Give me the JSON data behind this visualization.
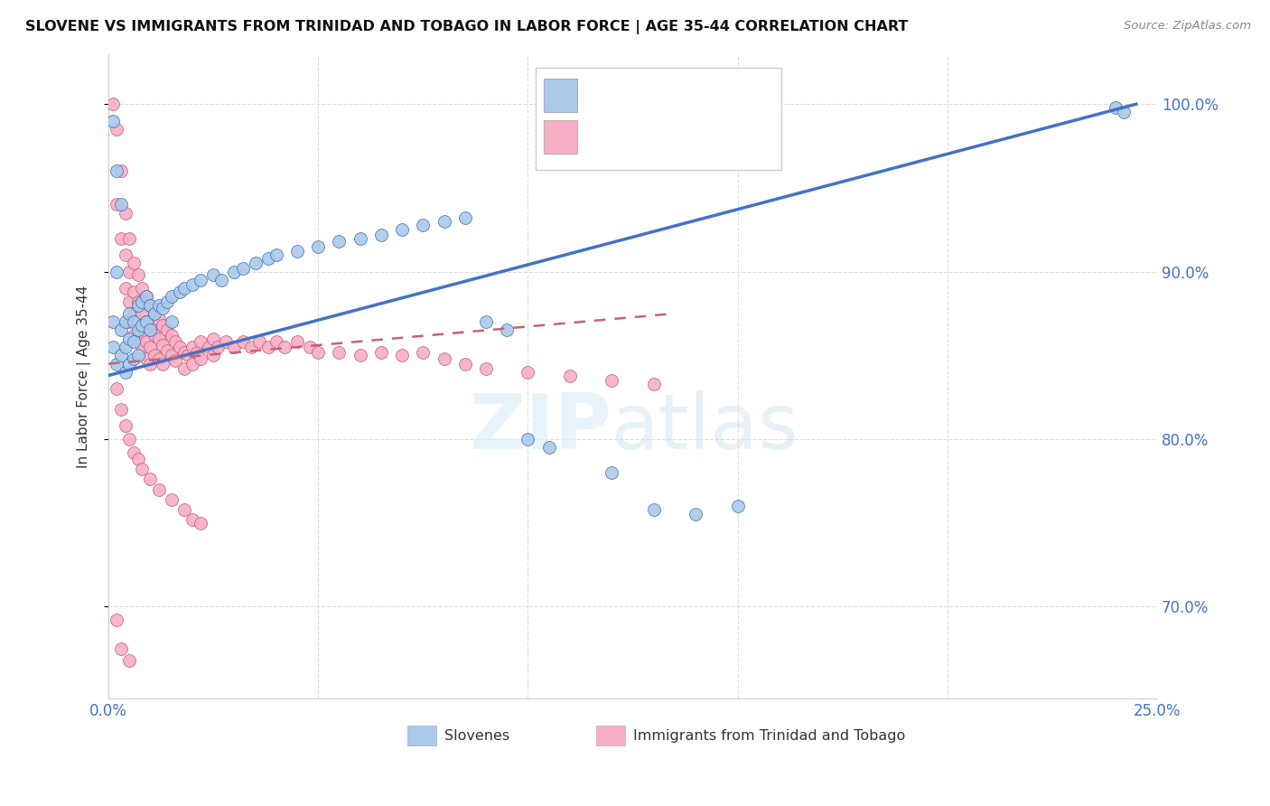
{
  "title": "SLOVENE VS IMMIGRANTS FROM TRINIDAD AND TOBAGO IN LABOR FORCE | AGE 35-44 CORRELATION CHART",
  "source": "Source: ZipAtlas.com",
  "ylabel": "In Labor Force | Age 35-44",
  "legend_label_blue": "Slovenes",
  "legend_label_pink": "Immigrants from Trinidad and Tobago",
  "blue_color": "#aac9e8",
  "pink_color": "#f5afc5",
  "trend_blue_color": "#4472c4",
  "trend_pink_color": "#c8607a",
  "xmin": 0.0,
  "xmax": 0.25,
  "ymin": 0.645,
  "ymax": 1.03,
  "ytick_vals": [
    0.7,
    0.8,
    0.9,
    1.0
  ],
  "blue_trend_x": [
    0.0,
    0.245
  ],
  "blue_trend_y": [
    0.838,
    1.0
  ],
  "pink_trend_x": [
    0.0,
    0.135
  ],
  "pink_trend_y": [
    0.845,
    0.875
  ],
  "blue_scatter": [
    [
      0.001,
      0.99
    ],
    [
      0.002,
      0.96
    ],
    [
      0.003,
      0.94
    ],
    [
      0.001,
      0.87
    ],
    [
      0.002,
      0.9
    ],
    [
      0.001,
      0.855
    ],
    [
      0.002,
      0.845
    ],
    [
      0.003,
      0.865
    ],
    [
      0.003,
      0.85
    ],
    [
      0.004,
      0.87
    ],
    [
      0.004,
      0.855
    ],
    [
      0.004,
      0.84
    ],
    [
      0.005,
      0.875
    ],
    [
      0.005,
      0.86
    ],
    [
      0.005,
      0.845
    ],
    [
      0.006,
      0.87
    ],
    [
      0.006,
      0.858
    ],
    [
      0.006,
      0.848
    ],
    [
      0.007,
      0.88
    ],
    [
      0.007,
      0.865
    ],
    [
      0.007,
      0.85
    ],
    [
      0.008,
      0.882
    ],
    [
      0.008,
      0.868
    ],
    [
      0.009,
      0.885
    ],
    [
      0.009,
      0.87
    ],
    [
      0.01,
      0.88
    ],
    [
      0.01,
      0.865
    ],
    [
      0.011,
      0.875
    ],
    [
      0.012,
      0.88
    ],
    [
      0.013,
      0.878
    ],
    [
      0.014,
      0.882
    ],
    [
      0.015,
      0.885
    ],
    [
      0.015,
      0.87
    ],
    [
      0.017,
      0.888
    ],
    [
      0.018,
      0.89
    ],
    [
      0.02,
      0.892
    ],
    [
      0.022,
      0.895
    ],
    [
      0.025,
      0.898
    ],
    [
      0.027,
      0.895
    ],
    [
      0.03,
      0.9
    ],
    [
      0.032,
      0.902
    ],
    [
      0.035,
      0.905
    ],
    [
      0.038,
      0.908
    ],
    [
      0.04,
      0.91
    ],
    [
      0.045,
      0.912
    ],
    [
      0.05,
      0.915
    ],
    [
      0.055,
      0.918
    ],
    [
      0.06,
      0.92
    ],
    [
      0.065,
      0.922
    ],
    [
      0.07,
      0.925
    ],
    [
      0.075,
      0.928
    ],
    [
      0.08,
      0.93
    ],
    [
      0.085,
      0.932
    ],
    [
      0.09,
      0.87
    ],
    [
      0.095,
      0.865
    ],
    [
      0.1,
      0.8
    ],
    [
      0.105,
      0.795
    ],
    [
      0.12,
      0.78
    ],
    [
      0.13,
      0.758
    ],
    [
      0.14,
      0.755
    ],
    [
      0.15,
      0.76
    ],
    [
      0.24,
      0.998
    ],
    [
      0.242,
      0.995
    ]
  ],
  "pink_scatter": [
    [
      0.001,
      1.0
    ],
    [
      0.002,
      0.985
    ],
    [
      0.002,
      0.94
    ],
    [
      0.003,
      0.96
    ],
    [
      0.003,
      0.92
    ],
    [
      0.004,
      0.935
    ],
    [
      0.004,
      0.91
    ],
    [
      0.004,
      0.89
    ],
    [
      0.005,
      0.92
    ],
    [
      0.005,
      0.9
    ],
    [
      0.005,
      0.882
    ],
    [
      0.005,
      0.87
    ],
    [
      0.006,
      0.905
    ],
    [
      0.006,
      0.888
    ],
    [
      0.006,
      0.875
    ],
    [
      0.006,
      0.862
    ],
    [
      0.007,
      0.898
    ],
    [
      0.007,
      0.882
    ],
    [
      0.007,
      0.87
    ],
    [
      0.007,
      0.858
    ],
    [
      0.008,
      0.89
    ],
    [
      0.008,
      0.875
    ],
    [
      0.008,
      0.864
    ],
    [
      0.008,
      0.855
    ],
    [
      0.009,
      0.885
    ],
    [
      0.009,
      0.87
    ],
    [
      0.009,
      0.858
    ],
    [
      0.009,
      0.848
    ],
    [
      0.01,
      0.88
    ],
    [
      0.01,
      0.867
    ],
    [
      0.01,
      0.855
    ],
    [
      0.01,
      0.845
    ],
    [
      0.011,
      0.875
    ],
    [
      0.011,
      0.862
    ],
    [
      0.011,
      0.85
    ],
    [
      0.012,
      0.872
    ],
    [
      0.012,
      0.86
    ],
    [
      0.012,
      0.848
    ],
    [
      0.013,
      0.868
    ],
    [
      0.013,
      0.856
    ],
    [
      0.013,
      0.845
    ],
    [
      0.014,
      0.865
    ],
    [
      0.014,
      0.853
    ],
    [
      0.015,
      0.862
    ],
    [
      0.015,
      0.85
    ],
    [
      0.016,
      0.858
    ],
    [
      0.016,
      0.847
    ],
    [
      0.017,
      0.855
    ],
    [
      0.018,
      0.852
    ],
    [
      0.018,
      0.842
    ],
    [
      0.019,
      0.85
    ],
    [
      0.02,
      0.855
    ],
    [
      0.02,
      0.845
    ],
    [
      0.021,
      0.852
    ],
    [
      0.022,
      0.858
    ],
    [
      0.022,
      0.848
    ],
    [
      0.024,
      0.855
    ],
    [
      0.025,
      0.86
    ],
    [
      0.025,
      0.85
    ],
    [
      0.026,
      0.855
    ],
    [
      0.028,
      0.858
    ],
    [
      0.03,
      0.855
    ],
    [
      0.032,
      0.858
    ],
    [
      0.034,
      0.855
    ],
    [
      0.036,
      0.858
    ],
    [
      0.038,
      0.855
    ],
    [
      0.04,
      0.858
    ],
    [
      0.042,
      0.855
    ],
    [
      0.045,
      0.858
    ],
    [
      0.048,
      0.855
    ],
    [
      0.05,
      0.852
    ],
    [
      0.055,
      0.852
    ],
    [
      0.06,
      0.85
    ],
    [
      0.065,
      0.852
    ],
    [
      0.07,
      0.85
    ],
    [
      0.075,
      0.852
    ],
    [
      0.08,
      0.848
    ],
    [
      0.085,
      0.845
    ],
    [
      0.09,
      0.842
    ],
    [
      0.1,
      0.84
    ],
    [
      0.11,
      0.838
    ],
    [
      0.12,
      0.835
    ],
    [
      0.13,
      0.833
    ],
    [
      0.002,
      0.83
    ],
    [
      0.003,
      0.818
    ],
    [
      0.004,
      0.808
    ],
    [
      0.005,
      0.8
    ],
    [
      0.006,
      0.792
    ],
    [
      0.007,
      0.788
    ],
    [
      0.008,
      0.782
    ],
    [
      0.01,
      0.776
    ],
    [
      0.012,
      0.77
    ],
    [
      0.015,
      0.764
    ],
    [
      0.018,
      0.758
    ],
    [
      0.02,
      0.752
    ],
    [
      0.022,
      0.75
    ],
    [
      0.002,
      0.692
    ],
    [
      0.003,
      0.675
    ],
    [
      0.005,
      0.668
    ]
  ]
}
